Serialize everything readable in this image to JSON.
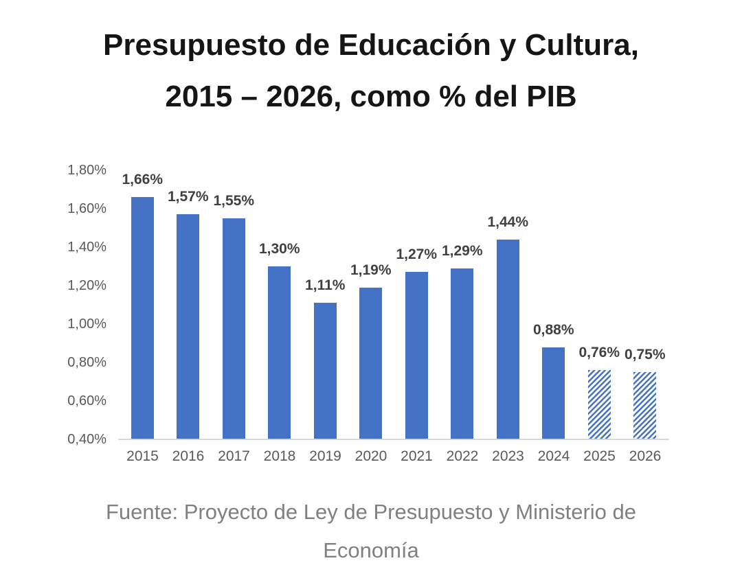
{
  "title": {
    "text": "Presupuesto de Educación y Cultura, 2015 – 2026, como % del PIB",
    "lines": [
      "Presupuesto de Educación y Cultura,",
      "2015 – 2026, como % del PIB"
    ]
  },
  "source": {
    "text": "Fuente: Proyecto de Ley de Presupuesto y Ministerio de Economía",
    "lines": [
      "Fuente: Proyecto de Ley de Presupuesto y Ministerio de",
      "Economía"
    ]
  },
  "colors": {
    "bar": "#4472C4",
    "hatch_background": "#ffffff",
    "data_label": "#404040",
    "axis_label": "#595959",
    "source_text": "#808080",
    "title_text": "#151515",
    "baseline": "#d9d9d9"
  },
  "chart_data": {
    "type": "bar",
    "title": "Presupuesto de Educación y Cultura, 2015 – 2026, como % del PIB",
    "categories": [
      "2015",
      "2016",
      "2017",
      "2018",
      "2019",
      "2020",
      "2021",
      "2022",
      "2023",
      "2024",
      "2025",
      "2026"
    ],
    "values": [
      1.66,
      1.57,
      1.55,
      1.3,
      1.11,
      1.19,
      1.27,
      1.29,
      1.44,
      0.88,
      0.76,
      0.75
    ],
    "labels": [
      "1,66%",
      "1,57%",
      "1,55%",
      "1,30%",
      "1,11%",
      "1,19%",
      "1,27%",
      "1,29%",
      "1,44%",
      "0,88%",
      "0,76%",
      "0,75%"
    ],
    "hatched": [
      false,
      false,
      false,
      false,
      false,
      false,
      false,
      false,
      false,
      false,
      true,
      true
    ],
    "hatched_categories": [
      "2025",
      "2026"
    ],
    "xlabel": "",
    "ylabel": "",
    "ylim": [
      0.4,
      1.8
    ],
    "yticks": [
      {
        "value": 1.8,
        "label": "1,80%"
      },
      {
        "value": 1.6,
        "label": "1,60%"
      },
      {
        "value": 1.4,
        "label": "1,40%"
      },
      {
        "value": 1.2,
        "label": "1,20%"
      },
      {
        "value": 1.0,
        "label": "1,00%"
      },
      {
        "value": 0.8,
        "label": "0,80%"
      },
      {
        "value": 0.6,
        "label": "0,60%"
      },
      {
        "value": 0.4,
        "label": "0,40%"
      }
    ],
    "grid": false,
    "legend": false,
    "unit": "% del PIB"
  }
}
